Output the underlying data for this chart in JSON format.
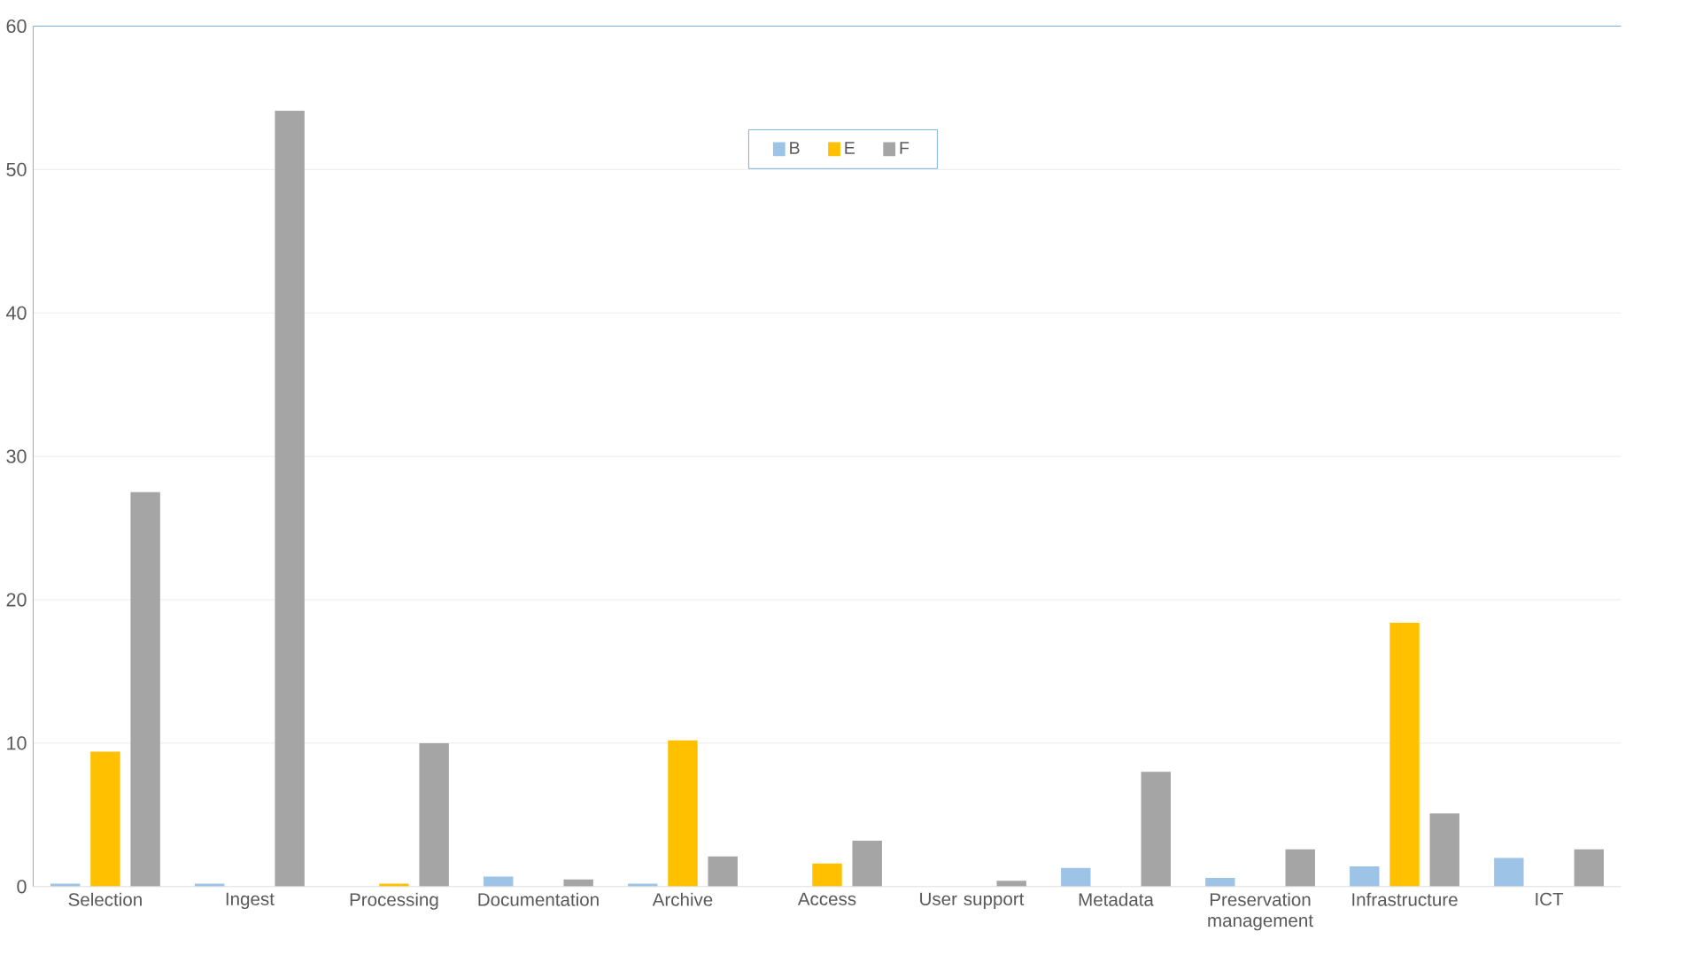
{
  "chart_data": {
    "type": "bar",
    "categories": [
      "Selection",
      "Ingest",
      "Processing",
      "Documentation",
      "Archive",
      "Access",
      "User support",
      "Metadata",
      "Preservation management",
      "Infrastructure",
      "ICT"
    ],
    "series": [
      {
        "name": "B",
        "color": "#9dc3e6",
        "values": [
          0.2,
          0.2,
          0,
          0.7,
          0.2,
          0,
          0,
          1.3,
          0.6,
          1.4,
          2.0
        ]
      },
      {
        "name": "E",
        "color": "#ffc000",
        "values": [
          9.4,
          0,
          0.2,
          0,
          10.2,
          1.6,
          0,
          0,
          0,
          18.4,
          0
        ]
      },
      {
        "name": "F",
        "color": "#a5a5a5",
        "values": [
          27.5,
          54.1,
          10.0,
          0.5,
          2.1,
          3.2,
          0.4,
          8.0,
          2.6,
          5.1,
          2.6
        ]
      }
    ],
    "ylim": [
      0,
      60
    ],
    "yticks": [
      0,
      10,
      20,
      30,
      40,
      50,
      60
    ],
    "grid": "y",
    "legend": "top"
  }
}
